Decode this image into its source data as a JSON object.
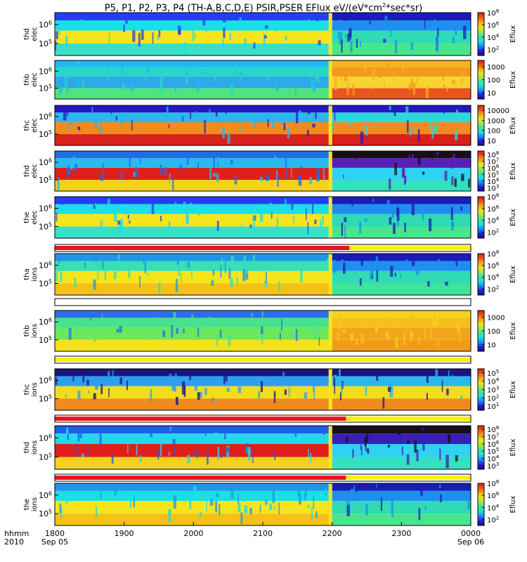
{
  "title_parts": [
    "P5, P1, P2, P3, P4 (TH-A,B,C,D,E) PSIR,PSER EFlux eV/(eV*cm",
    "2",
    "*sec*sr)"
  ],
  "chart_data": {
    "type": "heatmap",
    "title": "P5, P1, P2, P3, P4 (TH-A,B,C,D,E) PSIR,PSER EFlux eV/(eV*cm2*sec*sr)",
    "x_axis": {
      "row_labels": [
        "hhmm",
        "2010"
      ],
      "ticks": [
        "1800",
        "1900",
        "2000",
        "2100",
        "2200",
        "2300",
        "0000"
      ],
      "date_labels": [
        {
          "at": "1800",
          "text": "Sep 05"
        },
        {
          "at": "0000",
          "text": "Sep 06"
        }
      ],
      "range": [
        "1800",
        "0000"
      ]
    },
    "panels": [
      {
        "label": [
          "thd",
          "elec"
        ],
        "yticks": [
          "10^6",
          "10^5"
        ],
        "colorbar_label": "Eflux",
        "colorbar_ticks": [
          "10^8",
          "10^6",
          "10^4",
          "10^2"
        ],
        "colorbar_log_range": [
          1,
          8
        ],
        "palette": {
          "ttop": "#2340ee",
          "tmid": "#19dfe6",
          "tlow": "#f6e51c",
          "tbot": "#39e0c8",
          "btop": "#1a1cb6",
          "bmid": "#1f8fef",
          "blow": "#2fdab4",
          "bbot": "#48e68c"
        }
      },
      {
        "label": [
          "thb",
          "elec"
        ],
        "yticks": [
          "10^6",
          "10^5"
        ],
        "colorbar_label": "Eflux",
        "colorbar_ticks": [
          "1000",
          "100",
          "10"
        ],
        "colorbar_log_range": [
          0.5,
          3.5
        ],
        "palette": {
          "ttop": "#21b9f2",
          "tmid": "#27d7c8",
          "tlow": "#2ea8e6",
          "tbot": "#4fe381",
          "btop": "#f5b41b",
          "bmid": "#f29a1a",
          "blow": "#f7d431",
          "bbot": "#e9551d"
        }
      },
      {
        "label": [
          "thc",
          "elec"
        ],
        "yticks": [
          "10^6",
          "10^5"
        ],
        "colorbar_label": "Eflux",
        "colorbar_ticks": [
          "10000",
          "1000",
          "100",
          "10"
        ],
        "colorbar_log_range": [
          0.5,
          4.5
        ],
        "palette": {
          "ttop": "#2318c8",
          "tmid": "#2bb7ee",
          "tlow": "#ef8b20",
          "tbot": "#d8201c",
          "btop": "#2318c8",
          "bmid": "#2bd7d8",
          "blow": "#ef8b20",
          "bbot": "#d8201c"
        }
      },
      {
        "label": [
          "thd",
          "elec"
        ],
        "yticks": [
          "10^6",
          "10^5"
        ],
        "colorbar_label": "Eflux",
        "colorbar_ticks": [
          "10^8",
          "10^7",
          "10^6",
          "10^5",
          "10^4",
          "10^3"
        ],
        "colorbar_log_range": [
          2.5,
          8.5
        ],
        "palette": {
          "ttop": "#1f6ee8",
          "tmid": "#2bbaf0",
          "tlow": "#e01e1c",
          "tbot": "#f3d21e",
          "btop": "#181018",
          "bmid": "#5a1fb6",
          "blow": "#2fd2f2",
          "bbot": "#33e0c0"
        }
      },
      {
        "label": [
          "the",
          "elec"
        ],
        "yticks": [
          "10^6",
          "10^5"
        ],
        "colorbar_label": "Eflux",
        "colorbar_ticks": [
          "10^8",
          "10^6",
          "10^4",
          "10^2"
        ],
        "colorbar_log_range": [
          1,
          8
        ],
        "palette": {
          "ttop": "#2340ee",
          "tmid": "#19dfe6",
          "tlow": "#f6e51c",
          "tbot": "#39e0c8",
          "btop": "#1a1cb6",
          "bmid": "#1f8fef",
          "blow": "#2fdab4",
          "bbot": "#48e68c"
        }
      },
      {
        "label": [
          "tha",
          "ions"
        ],
        "yticks": [
          "10^6",
          "10^5"
        ],
        "colorbar_label": "Eflux",
        "colorbar_ticks": [
          "10^8",
          "10^6",
          "10^4",
          "10^2"
        ],
        "colorbar_log_range": [
          1,
          8
        ],
        "palette": {
          "ttop": "#1f95ea",
          "tmid": "#33e0b8",
          "tlow": "#f6e51c",
          "tbot": "#f4c01a",
          "btop": "#1a1cb6",
          "bmid": "#1f8fef",
          "blow": "#2fdab4",
          "bbot": "#3fe49a"
        }
      },
      {
        "label": [
          "thb",
          "ions"
        ],
        "yticks": [
          "10^6",
          "10^5"
        ],
        "colorbar_label": "Eflux",
        "colorbar_ticks": [
          "1000",
          "100",
          "10"
        ],
        "colorbar_log_range": [
          0.5,
          3.5
        ],
        "palette": {
          "ttop": "#2b6fe8",
          "tmid": "#48e28f",
          "tlow": "#6ae85e",
          "tbot": "#f3e11c",
          "btop": "#f5d21e",
          "bmid": "#f5c01c",
          "blow": "#f2a51b",
          "bbot": "#f29a1a"
        }
      },
      {
        "label": [
          "thc",
          "ions"
        ],
        "yticks": [
          "10^6",
          "10^5"
        ],
        "colorbar_label": "Eflux",
        "colorbar_ticks": [
          "10^5",
          "10^4",
          "10^3",
          "10^2",
          "10^1"
        ],
        "colorbar_log_range": [
          0.5,
          5.5
        ],
        "palette": {
          "ttop": "#1a1480",
          "tmid": "#2b9ff0",
          "tlow": "#f2dc1c",
          "tbot": "#ef8a1e",
          "btop": "#1a1480",
          "bmid": "#2bb7ee",
          "blow": "#f2dc1c",
          "bbot": "#ef8a1e"
        }
      },
      {
        "label": [
          "thd",
          "ions"
        ],
        "yticks": [
          "10^6",
          "10^5"
        ],
        "colorbar_label": "Eflux",
        "colorbar_ticks": [
          "10^8",
          "10^7",
          "10^6",
          "10^5",
          "10^4",
          "10^3"
        ],
        "colorbar_log_range": [
          2.5,
          8.5
        ],
        "palette": {
          "ttop": "#1f5fe8",
          "tmid": "#23d8ec",
          "tlow": "#e01e1c",
          "tbot": "#f3d21e",
          "btop": "#151018",
          "bmid": "#3a1fb6",
          "blow": "#2fd2f2",
          "bbot": "#33e0c0"
        }
      },
      {
        "label": [
          "the",
          "ions"
        ],
        "yticks": [
          "10^6",
          "10^5"
        ],
        "colorbar_label": "Eflux",
        "colorbar_ticks": [
          "10^8",
          "10^6",
          "10^4",
          "10^2"
        ],
        "colorbar_log_range": [
          1,
          8
        ],
        "palette": {
          "ttop": "#1f95ea",
          "tmid": "#19dfe6",
          "tlow": "#f6e51c",
          "tbot": "#f4c01a",
          "btop": "#1a1cb6",
          "bmid": "#1f8fef",
          "blow": "#2fdab4",
          "bbot": "#48e68c"
        }
      }
    ],
    "status_bars": [
      {
        "segments": [
          {
            "from": "1800",
            "to": "2215",
            "color": "#e8141c"
          },
          {
            "from": "2215",
            "to": "0000",
            "color": "#f8f200"
          }
        ]
      },
      {
        "segments": [
          {
            "from": "1800",
            "to": "0000",
            "color": "#ffffff"
          }
        ]
      },
      {
        "segments": [
          {
            "from": "1800",
            "to": "0000",
            "color": "#f8f200"
          }
        ]
      },
      {
        "segments": [
          {
            "from": "1800",
            "to": "2212",
            "color": "#e8141c"
          },
          {
            "from": "2212",
            "to": "0000",
            "color": "#f8f200"
          }
        ]
      },
      {
        "segments": [
          {
            "from": "1800",
            "to": "2212",
            "color": "#e8141c"
          },
          {
            "from": "2212",
            "to": "0000",
            "color": "#f8f200"
          }
        ]
      }
    ],
    "mode_change_time": "2200",
    "colormap": [
      "#1a0a80",
      "#2020e8",
      "#1f8fef",
      "#19dfe6",
      "#3fe49a",
      "#9ee84a",
      "#f3e11c",
      "#f2a51b",
      "#e9551d",
      "#d8201c"
    ]
  }
}
